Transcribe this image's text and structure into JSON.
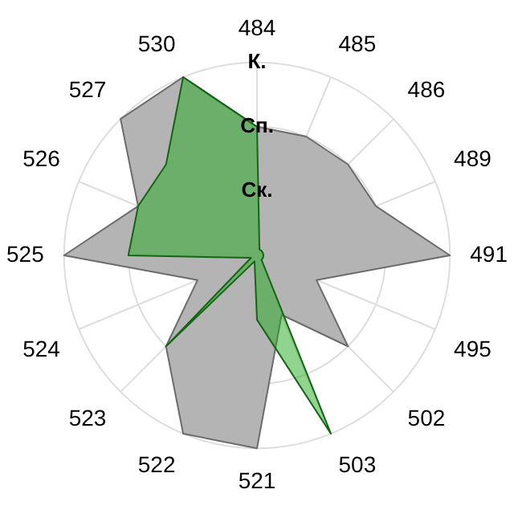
{
  "chart_data": {
    "type": "radar",
    "categories": [
      "484",
      "485",
      "486",
      "489",
      "491",
      "495",
      "502",
      "503",
      "521",
      "522",
      "523",
      "524",
      "525",
      "526",
      "527",
      "530"
    ],
    "series": [
      {
        "color": "#b4b4b4",
        "values": [
          2,
          2,
          2,
          2,
          3,
          1,
          2,
          1,
          3,
          3,
          2,
          1,
          3,
          2,
          3,
          3
        ]
      },
      {
        "color": "#22aa22",
        "values": [
          2,
          0.1,
          0.1,
          0.1,
          0.1,
          0.1,
          0.1,
          3,
          1,
          0.1,
          2,
          0.1,
          2,
          2,
          2,
          3
        ]
      }
    ],
    "ylim": [
      0,
      3
    ],
    "yticks": [
      {
        "value": 1,
        "label": "Ск."
      },
      {
        "value": 2,
        "label": "Сп."
      },
      {
        "value": 3,
        "label": "К."
      }
    ],
    "grid": true,
    "legend": false,
    "marker": "none"
  }
}
